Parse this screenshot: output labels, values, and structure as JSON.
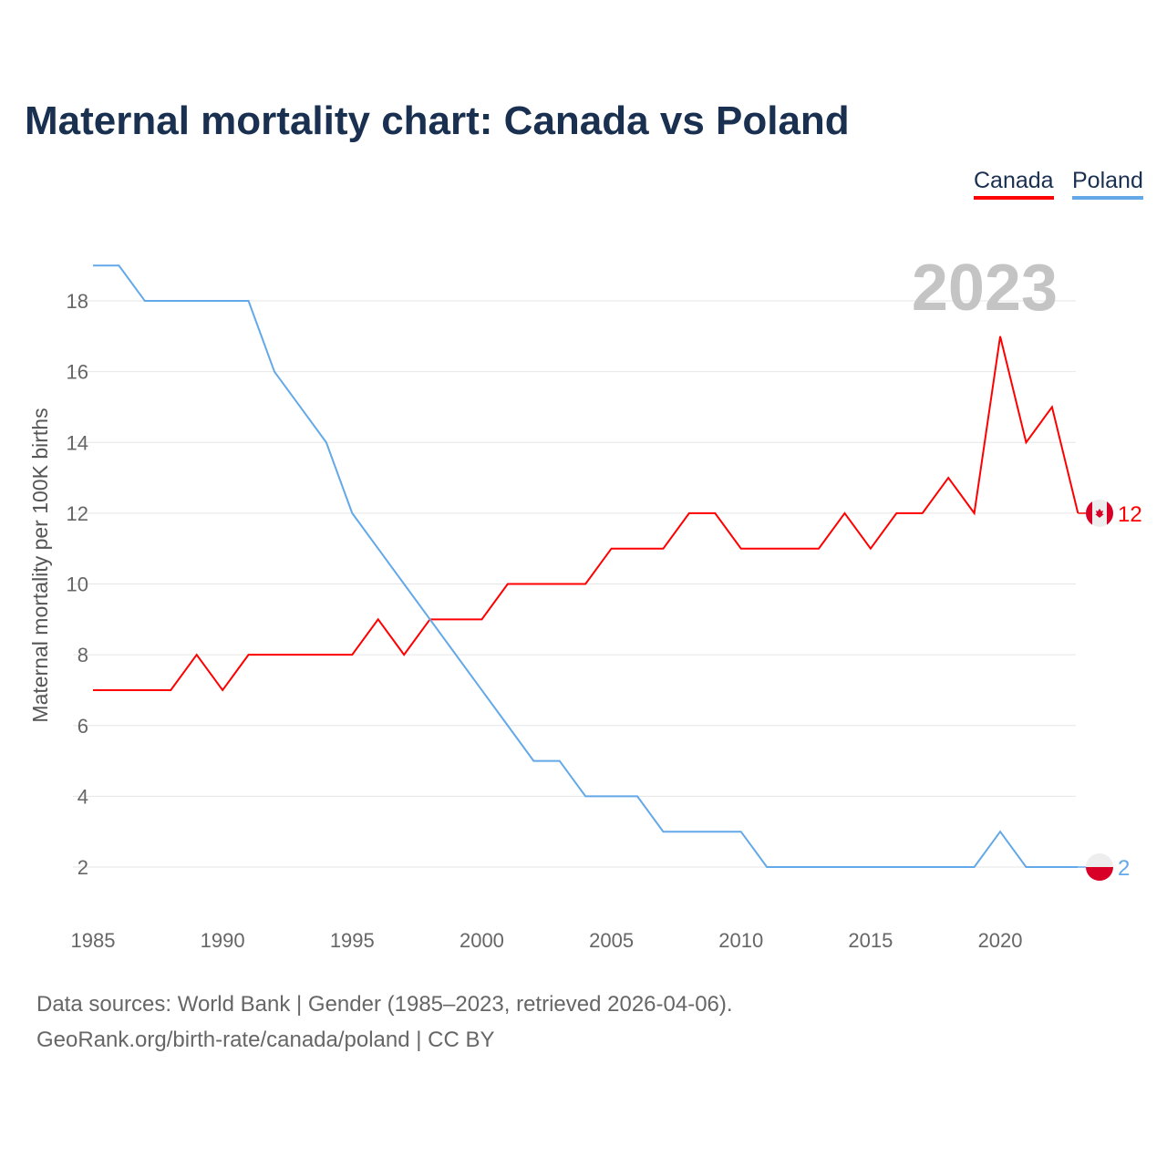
{
  "chart_data": {
    "type": "line",
    "title": "Maternal mortality chart: Canada vs Poland",
    "xlabel": "",
    "ylabel": "Maternal mortality per 100K births",
    "year_label": "2023",
    "xlim": [
      1985,
      2023
    ],
    "ylim": [
      1,
      19
    ],
    "x_ticks": [
      1985,
      1990,
      1995,
      2000,
      2005,
      2010,
      2015,
      2020
    ],
    "y_ticks": [
      2,
      4,
      6,
      8,
      10,
      12,
      14,
      16,
      18
    ],
    "grid": true,
    "legend_position": "top-right",
    "x": [
      1985,
      1986,
      1987,
      1988,
      1989,
      1990,
      1991,
      1992,
      1993,
      1994,
      1995,
      1996,
      1997,
      1998,
      1999,
      2000,
      2001,
      2002,
      2003,
      2004,
      2005,
      2006,
      2007,
      2008,
      2009,
      2010,
      2011,
      2012,
      2013,
      2014,
      2015,
      2016,
      2017,
      2018,
      2019,
      2020,
      2021,
      2022,
      2023
    ],
    "series": [
      {
        "name": "Canada",
        "color": "#ff0000",
        "end_label": "12",
        "values": [
          7,
          7,
          7,
          7,
          8,
          7,
          8,
          8,
          8,
          8,
          8,
          9,
          8,
          9,
          9,
          9,
          10,
          10,
          10,
          10,
          11,
          11,
          11,
          12,
          12,
          11,
          11,
          11,
          11,
          12,
          11,
          12,
          12,
          13,
          12,
          17,
          14,
          15,
          12
        ]
      },
      {
        "name": "Poland",
        "color": "#63a8e8",
        "end_label": "2",
        "values": [
          19,
          19,
          18,
          18,
          18,
          18,
          18,
          16,
          15,
          14,
          12,
          11,
          10,
          9,
          8,
          7,
          6,
          5,
          5,
          4,
          4,
          4,
          3,
          3,
          3,
          3,
          2,
          2,
          2,
          2,
          2,
          2,
          2,
          2,
          2,
          3,
          2,
          2,
          2
        ]
      }
    ]
  },
  "footer": {
    "line1": "Data sources: World Bank | Gender (1985–2023, retrieved 2026-04-06).",
    "line2": "GeoRank.org/birth-rate/canada/poland | CC BY"
  }
}
